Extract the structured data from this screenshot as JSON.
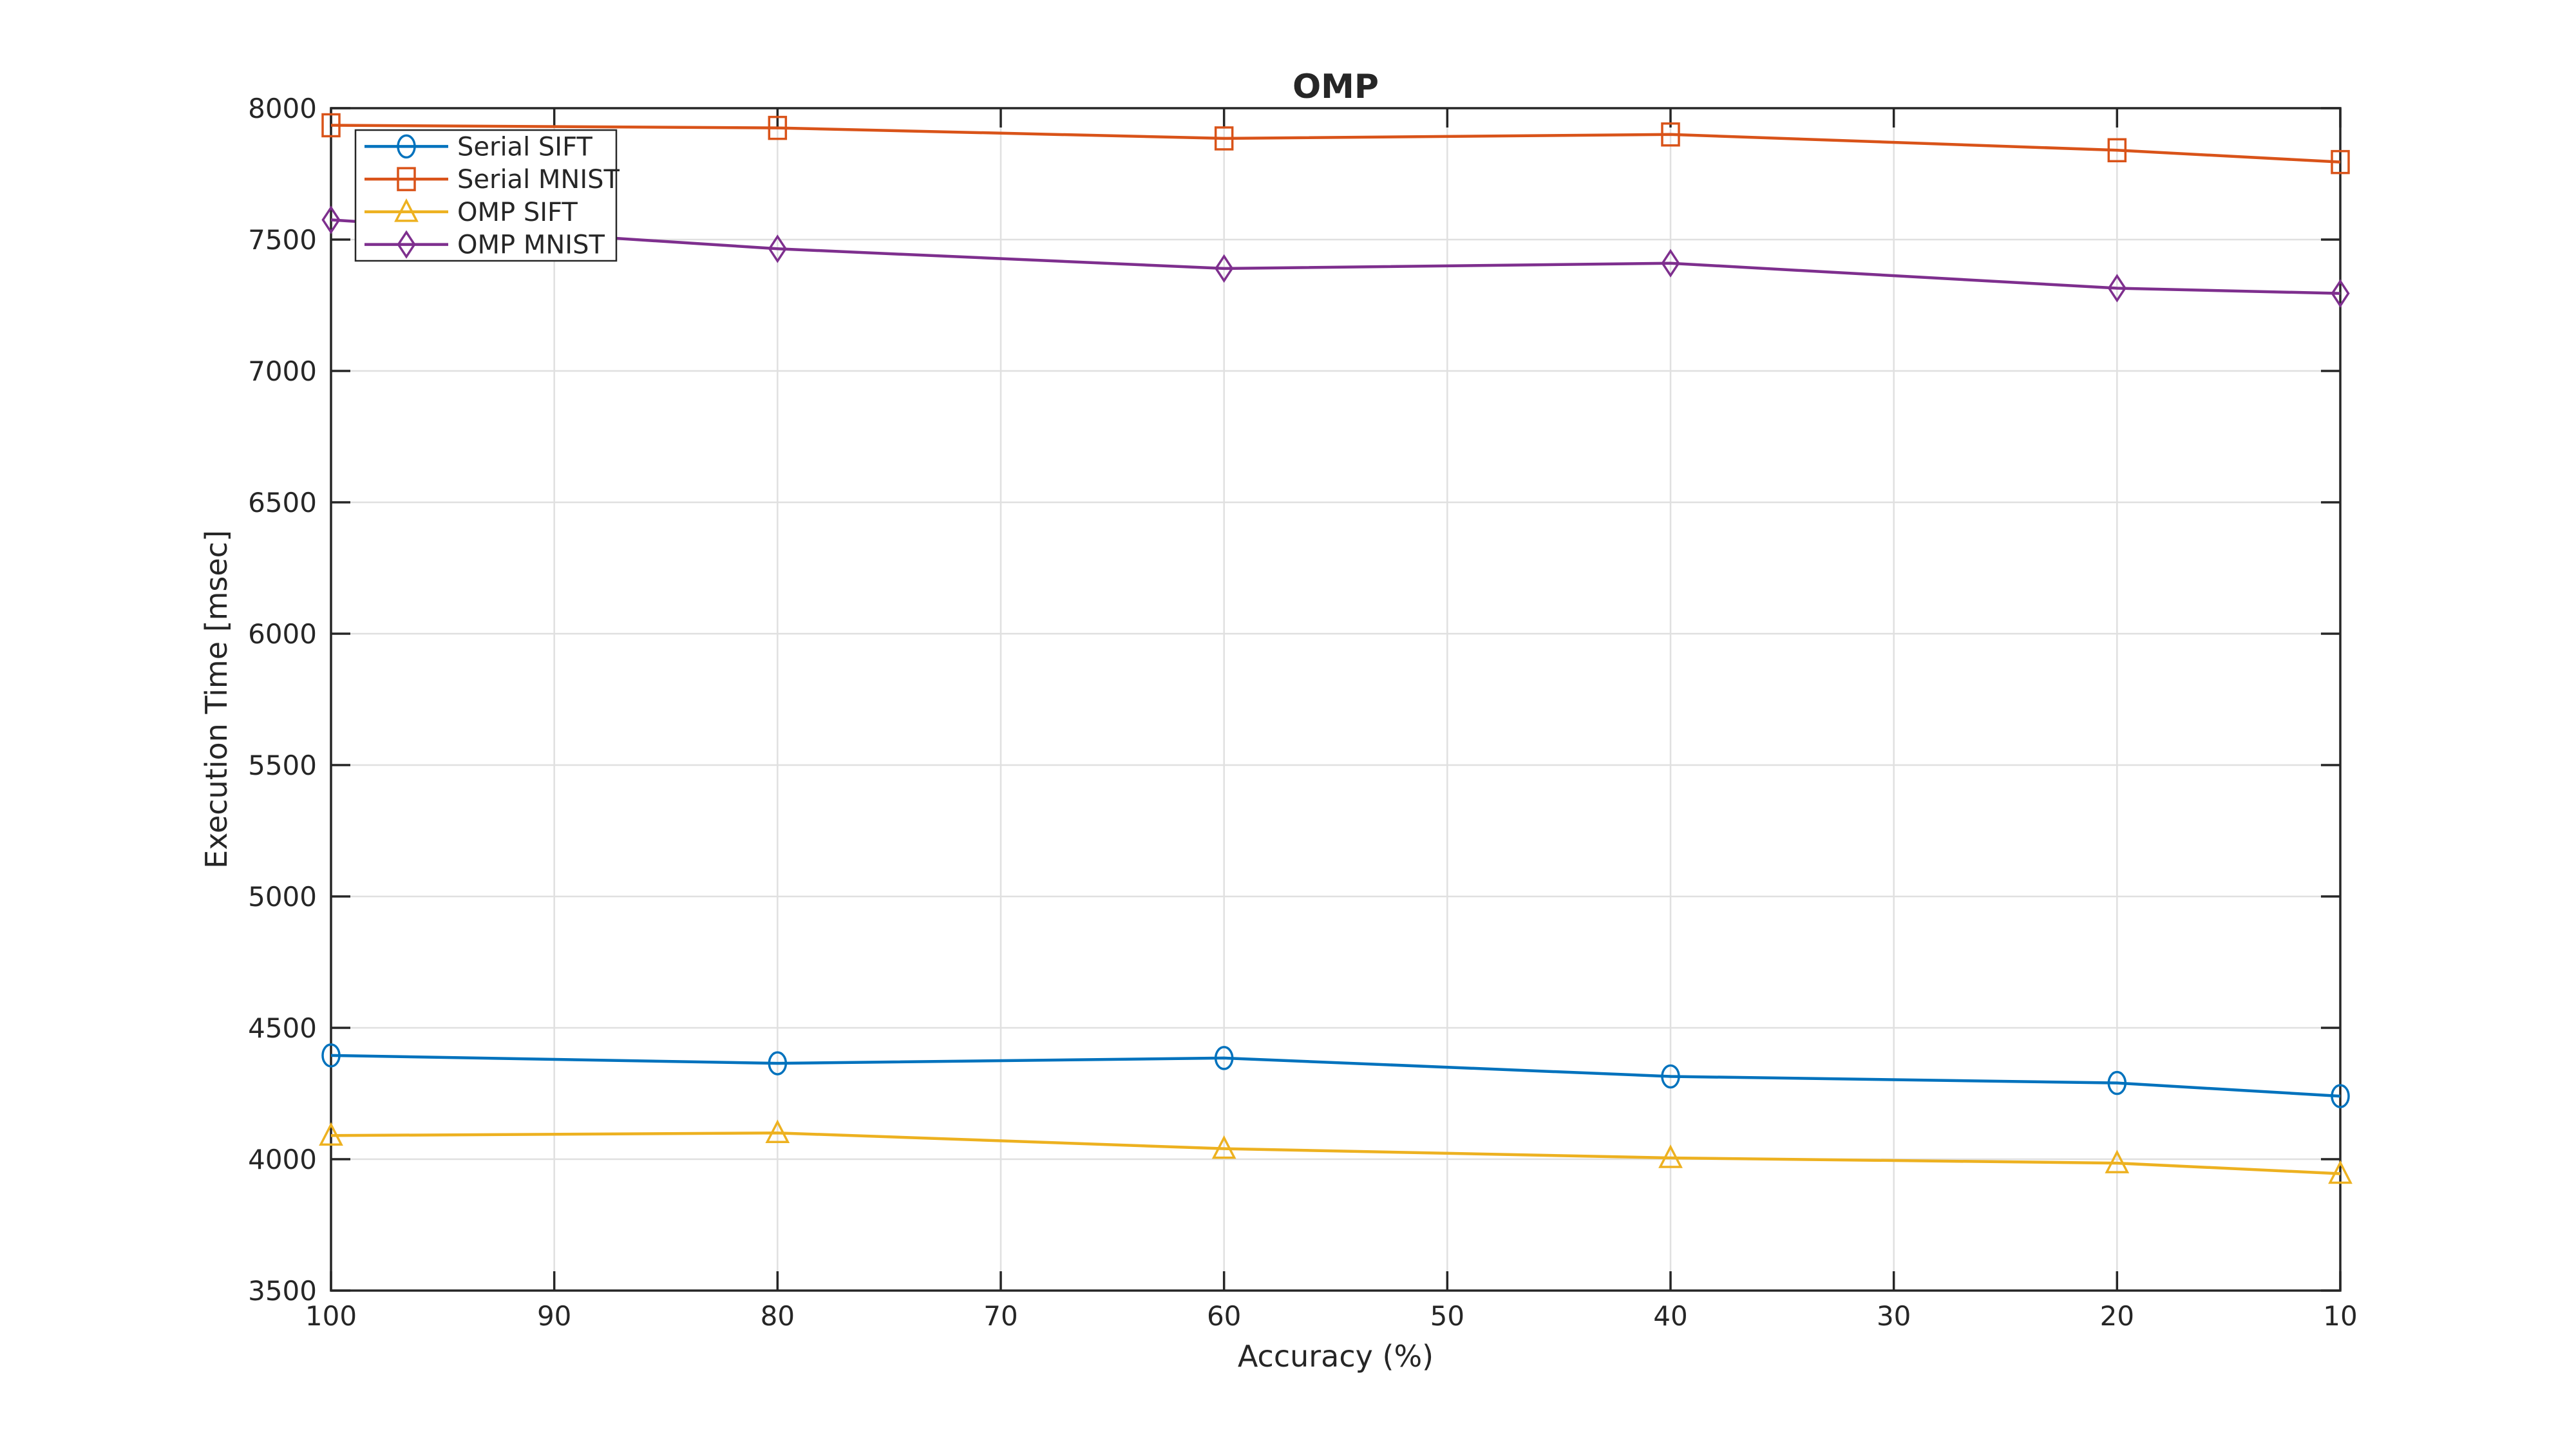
{
  "figure": {
    "title": "OMP"
  },
  "chart_data": {
    "type": "line",
    "title": "OMP",
    "xlabel": "Accuracy (%)",
    "ylabel": "Execution Time [msec]",
    "x": [
      100,
      80,
      60,
      40,
      20,
      10
    ],
    "x_axis": {
      "min": 10,
      "max": 100,
      "reversed": true,
      "ticks": [
        100,
        90,
        80,
        70,
        60,
        50,
        40,
        30,
        20,
        10
      ]
    },
    "y_axis": {
      "min": 3500,
      "max": 8000,
      "ticks": [
        3500,
        4000,
        4500,
        5000,
        5500,
        6000,
        6500,
        7000,
        7500,
        8000
      ]
    },
    "grid": true,
    "legend": {
      "position": "top-left-inside",
      "entries": [
        "Serial SIFT",
        "Serial MNIST",
        "OMP SIFT",
        "OMP MNIST"
      ]
    },
    "series": [
      {
        "name": "Serial SIFT",
        "color": "#0072BD",
        "marker": "circle",
        "values": [
          4395,
          4365,
          4385,
          4315,
          4290,
          4240
        ]
      },
      {
        "name": "Serial MNIST",
        "color": "#D95319",
        "marker": "square",
        "values": [
          7935,
          7925,
          7885,
          7900,
          7840,
          7795
        ]
      },
      {
        "name": "OMP SIFT",
        "color": "#EDB120",
        "marker": "triangle",
        "values": [
          4090,
          4100,
          4040,
          4005,
          3985,
          3945
        ]
      },
      {
        "name": "OMP MNIST",
        "color": "#7E2F8E",
        "marker": "diamond",
        "values": [
          7575,
          7465,
          7390,
          7410,
          7315,
          7295
        ]
      }
    ],
    "colors": {
      "axis": "#262626",
      "grid": "#E0E0E0",
      "background": "#FFFFFF",
      "legend_border": "#262626"
    }
  }
}
